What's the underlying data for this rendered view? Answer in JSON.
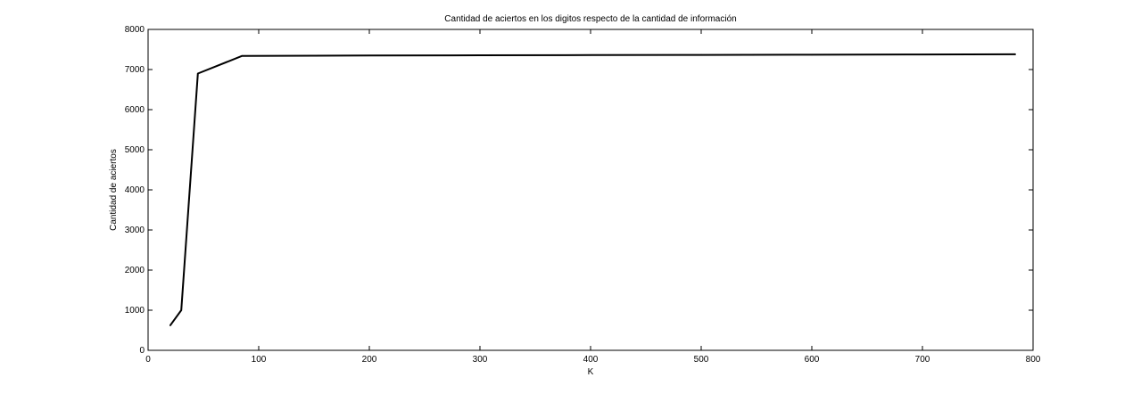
{
  "chart_data": {
    "type": "line",
    "title": "Cantidad de aciertos en los digitos respecto de la cantidad de información",
    "xlabel": "K",
    "ylabel": "Cantidad de aciertos",
    "xlim": [
      0,
      800
    ],
    "ylim": [
      0,
      8000
    ],
    "xticks": [
      0,
      100,
      200,
      300,
      400,
      500,
      600,
      700,
      800
    ],
    "yticks": [
      0,
      1000,
      2000,
      3000,
      4000,
      5000,
      6000,
      7000,
      8000
    ],
    "grid": false,
    "legend": "none",
    "line_color": "#000000",
    "series": [
      {
        "x": [
          20,
          30,
          45,
          85,
          150,
          200,
          300,
          400,
          500,
          600,
          700,
          784
        ],
        "values": [
          620,
          1000,
          6900,
          7340,
          7345,
          7350,
          7355,
          7360,
          7365,
          7370,
          7375,
          7380
        ]
      }
    ]
  }
}
